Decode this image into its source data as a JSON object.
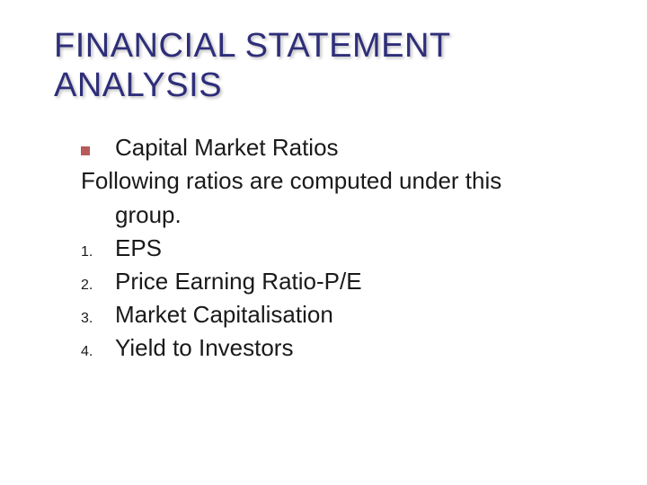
{
  "slide": {
    "title": "FINANCIAL STATEMENT ANALYSIS",
    "bullet_item": "Capital Market Ratios",
    "following_line1": "Following ratios are computed under this",
    "following_line2": "group.",
    "numbered_items": [
      {
        "num": "1.",
        "text": "EPS"
      },
      {
        "num": "2.",
        "text": "Price Earning Ratio-P/E"
      },
      {
        "num": "3.",
        "text": "Market Capitalisation"
      },
      {
        "num": "4.",
        "text": "Yield to Investors"
      }
    ],
    "colors": {
      "title_color": "#2e2e7a",
      "body_color": "#1a1a1a",
      "bullet_color": "#b85a5a",
      "background": "#ffffff"
    },
    "typography": {
      "title_fontsize": 38,
      "body_fontsize": 26,
      "number_fontsize": 16,
      "font_family": "Verdana"
    }
  }
}
